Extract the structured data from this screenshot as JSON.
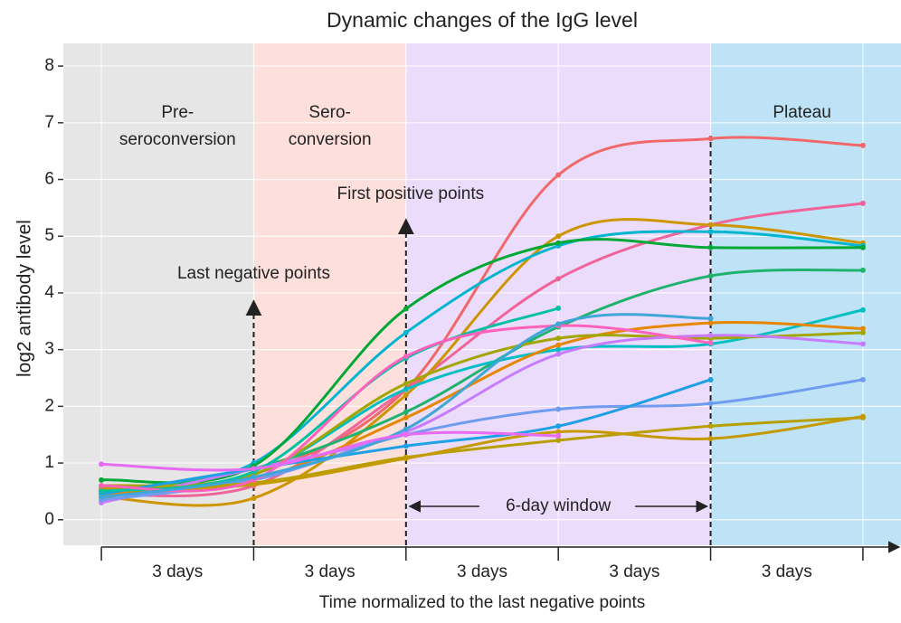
{
  "chart_data": {
    "type": "line",
    "title": "Dynamic changes of the IgG level",
    "x_label": "Time normalized to the last negative points",
    "y_label": "log2 antibody level",
    "x": [
      0,
      1,
      2,
      3,
      4,
      5
    ],
    "xlim": [
      -0.25,
      5.25
    ],
    "xticks": [
      0,
      1,
      2,
      3,
      4,
      5
    ],
    "interval_labels": [
      "3 days",
      "3 days",
      "3 days",
      "3 days",
      "3 days"
    ],
    "ylim": [
      -0.45,
      8.4
    ],
    "yticks": [
      0,
      1,
      2,
      3,
      4,
      5,
      6,
      7,
      8
    ],
    "grid": true,
    "regions": [
      {
        "label": [
          "Pre-",
          "seroconversion"
        ],
        "color": "#e6e6e6"
      },
      {
        "label": [
          "Sero-",
          "conversion"
        ],
        "color": "#fde0dc"
      },
      {
        "label": [],
        "color": "#ecdcfb"
      },
      {
        "label": [
          "Plateau"
        ],
        "color": "#bfe3f6"
      }
    ],
    "annotations": [
      "Last negative points",
      "First positive points",
      "6-day window"
    ],
    "series": [
      {
        "color": "#f0686a",
        "values": [
          0.5,
          0.8,
          2.3,
          6.08,
          6.72,
          6.6
        ]
      },
      {
        "color": "#f0649a",
        "values": [
          0.45,
          0.6,
          2.3,
          4.25,
          5.2,
          5.58
        ]
      },
      {
        "color": "#cd9600",
        "values": [
          0.4,
          0.38,
          2.2,
          5.0,
          5.2,
          4.88
        ]
      },
      {
        "color": "#00b5d0",
        "values": [
          0.4,
          1.0,
          3.3,
          4.83,
          5.08,
          4.83
        ]
      },
      {
        "color": "#00a835",
        "values": [
          0.7,
          0.95,
          3.72,
          4.88,
          4.8,
          4.8
        ]
      },
      {
        "color": "#1fb36e",
        "values": [
          0.5,
          0.9,
          1.9,
          3.4,
          4.3,
          4.4
        ]
      },
      {
        "color": "#00bfc4",
        "values": [
          0.55,
          0.8,
          2.3,
          3.0,
          3.1,
          3.7
        ]
      },
      {
        "color": "#e58700",
        "values": [
          0.45,
          0.7,
          1.8,
          3.08,
          3.47,
          3.37
        ]
      },
      {
        "color": "#a3a500",
        "values": [
          0.6,
          0.8,
          2.4,
          3.2,
          3.2,
          3.3
        ]
      },
      {
        "color": "#c77cff",
        "values": [
          0.3,
          0.9,
          1.55,
          2.92,
          3.25,
          3.1
        ]
      },
      {
        "color": "#6f9cf0",
        "values": [
          0.35,
          0.7,
          1.5,
          1.95,
          2.05,
          2.47
        ]
      },
      {
        "color": "#b79f00",
        "values": [
          0.55,
          0.65,
          1.1,
          1.4,
          1.65,
          1.8
        ]
      },
      {
        "color": "#c49a00",
        "values": [
          0.5,
          0.62,
          1.08,
          1.55,
          1.43,
          1.82
        ]
      },
      {
        "color": "#1ea0e6",
        "values": [
          0.45,
          0.9,
          1.3,
          1.65,
          2.47,
          null
        ]
      },
      {
        "color": "#00c1a3",
        "values": [
          0.5,
          0.85,
          2.85,
          3.73,
          null,
          null
        ]
      },
      {
        "color": "#ff62bc",
        "values": [
          0.6,
          0.7,
          2.88,
          3.42,
          3.12,
          null
        ]
      },
      {
        "color": "#3fa6d8",
        "values": [
          0.4,
          0.75,
          1.6,
          3.45,
          3.55,
          null
        ]
      },
      {
        "color": "#e76bf3",
        "values": [
          0.98,
          0.9,
          1.5,
          1.48,
          null,
          null
        ]
      }
    ]
  }
}
